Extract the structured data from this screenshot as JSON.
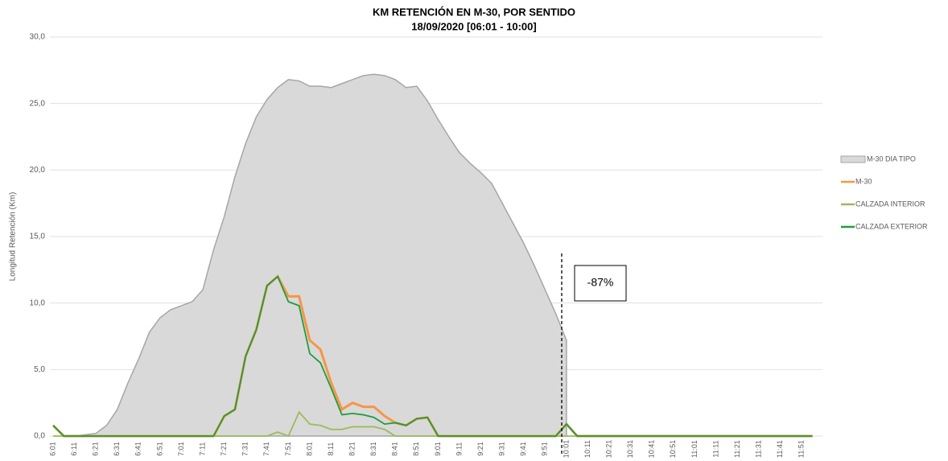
{
  "chart_data": {
    "type": "line",
    "title": "KM RETENCIÓN EN M-30, POR SENTIDO",
    "subtitle": "18/09/2020    [06:01 - 10:00]",
    "y_label": "Longitud Retención (Km)",
    "annotation": "-87%",
    "categories": [
      "6:01",
      null,
      "6:11",
      null,
      "6:21",
      null,
      "6:31",
      null,
      "6:41",
      null,
      "6:51",
      null,
      "7:01",
      null,
      "7:11",
      null,
      "7:21",
      null,
      "7:31",
      null,
      "7:41",
      null,
      "7:51",
      null,
      "8:01",
      null,
      "8:11",
      null,
      "8:21",
      null,
      "8:31",
      null,
      "8:41",
      null,
      "8:51",
      null,
      "9:01",
      null,
      "9:11",
      null,
      "9:21",
      null,
      "9:31",
      null,
      "9:41",
      null,
      "9:51",
      null,
      "10:01",
      null,
      "10:11",
      null,
      "10:21",
      null,
      "10:31",
      null,
      "10:41",
      null,
      "10:51",
      null,
      "11:01",
      null,
      "11:11",
      null,
      "11:21",
      null,
      "11:31",
      null,
      "11:41",
      null,
      "11:51",
      null
    ],
    "series": [
      {
        "name": "M-30 DIA TIPO",
        "color": "#d9d9d9",
        "style": "area",
        "values": [
          0,
          0,
          0,
          0.1,
          0.2,
          0.8,
          2,
          4,
          5.8,
          7.8,
          8.9,
          9.5,
          9.8,
          10.1,
          11,
          14,
          16.5,
          19.5,
          22,
          24,
          25.3,
          26.2,
          26.8,
          26.7,
          26.3,
          26.3,
          26.2,
          26.5,
          26.8,
          27.1,
          27.2,
          27.1,
          26.8,
          26.2,
          26.3,
          25.2,
          23.8,
          22.5,
          21.3,
          20.5,
          19.8,
          19,
          17.5,
          16,
          14.5,
          12.8,
          11,
          9.2,
          7.2,
          null,
          null,
          null,
          null,
          null,
          null,
          null,
          null,
          null,
          null,
          null,
          null,
          null,
          null,
          null,
          null,
          null,
          null,
          null,
          null,
          null,
          null,
          null
        ]
      },
      {
        "name": "M-30",
        "color": "#f79646",
        "style": "line",
        "values": [
          0.8,
          0,
          0,
          0,
          0,
          0,
          0,
          0,
          0,
          0,
          0,
          0,
          0,
          0,
          0,
          0,
          1.5,
          2,
          6,
          8,
          11.3,
          12,
          10.5,
          10.5,
          7.2,
          6.5,
          4,
          2,
          2.5,
          2.2,
          2.2,
          1.5,
          1,
          0.8,
          1.3,
          1.4,
          0,
          0,
          0,
          0,
          0,
          0,
          0,
          0,
          0,
          0,
          0,
          0,
          0.9,
          0,
          0,
          0,
          0,
          0,
          0,
          0,
          0,
          0,
          0,
          0,
          0,
          0,
          0,
          0,
          0,
          0,
          0,
          0,
          0,
          0,
          0,
          0
        ]
      },
      {
        "name": "CALZADA INTERIOR",
        "color": "#9bbb59",
        "style": "line",
        "values": [
          0,
          0,
          0,
          0,
          0,
          0,
          0,
          0,
          0,
          0,
          0,
          0,
          0,
          0,
          0,
          0,
          0,
          0,
          0,
          0,
          0,
          0.3,
          0,
          1.8,
          0.9,
          0.8,
          0.5,
          0.5,
          0.7,
          0.7,
          0.7,
          0.5,
          0,
          0,
          0,
          0,
          0,
          0,
          0,
          0,
          0,
          0,
          0,
          0,
          0,
          0,
          0,
          0,
          0,
          0,
          0,
          0,
          0,
          0,
          0,
          0,
          0,
          0,
          0,
          0,
          0,
          0,
          0,
          0,
          0,
          0,
          0,
          0,
          0,
          0,
          0,
          0
        ]
      },
      {
        "name": "CALZADA EXTERIOR",
        "color": "#1e9e3e",
        "style": "line",
        "values": [
          0.8,
          0,
          0,
          0,
          0,
          0,
          0,
          0,
          0,
          0,
          0,
          0,
          0,
          0,
          0,
          0,
          1.5,
          2,
          6,
          8,
          11.3,
          12,
          10.1,
          9.8,
          6.2,
          5.5,
          3.6,
          1.6,
          1.7,
          1.6,
          1.4,
          0.9,
          1,
          0.8,
          1.3,
          1.4,
          0,
          0,
          0,
          0,
          0,
          0,
          0,
          0,
          0,
          0,
          0,
          0,
          0.9,
          0,
          0,
          0,
          0,
          0,
          0,
          0,
          0,
          0,
          0,
          0,
          0,
          0,
          0,
          0,
          0,
          0,
          0,
          0,
          0,
          0,
          0,
          0
        ]
      }
    ],
    "ylim": [
      0,
      30
    ],
    "yticks": [
      {
        "value": 0,
        "label": "0,0"
      },
      {
        "value": 5,
        "label": "5,0"
      },
      {
        "value": 10,
        "label": "10,0"
      },
      {
        "value": 15,
        "label": "15,0"
      },
      {
        "value": 20,
        "label": "20,0"
      },
      {
        "value": 25,
        "label": "25,0"
      },
      {
        "value": 30,
        "label": "30,0"
      }
    ],
    "grid": true
  }
}
